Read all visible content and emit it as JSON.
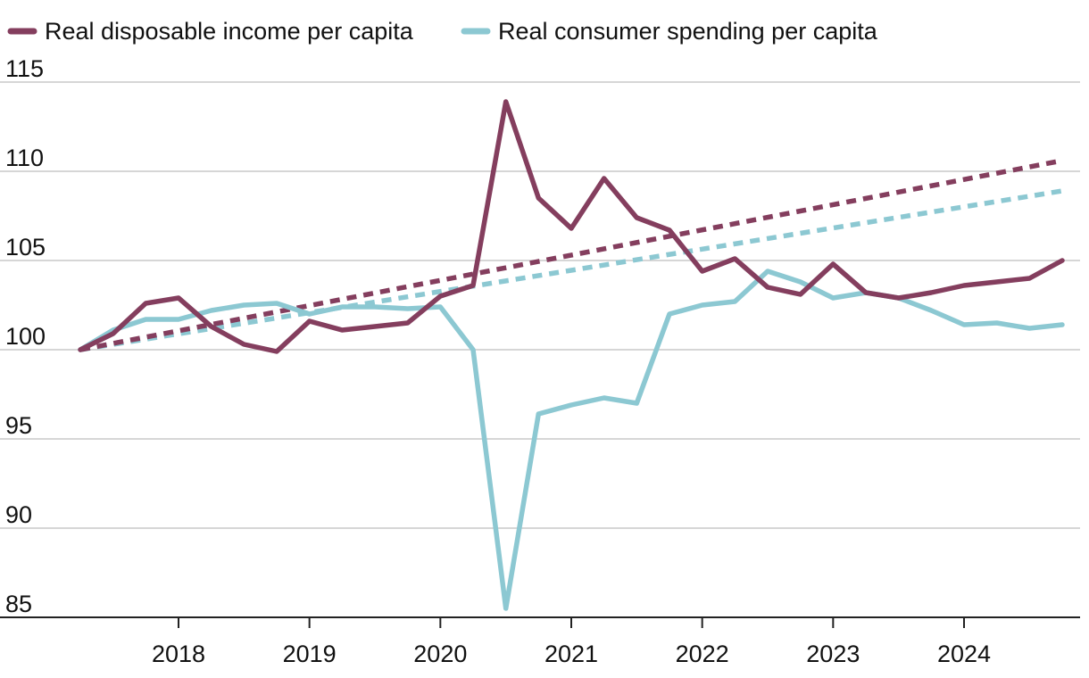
{
  "chart_data": {
    "type": "line",
    "title": "",
    "xlabel": "",
    "ylabel": "",
    "ylim": [
      85,
      115
    ],
    "y_ticks": [
      85,
      90,
      95,
      100,
      105,
      110,
      115
    ],
    "x_tick_labels": [
      "2018",
      "2019",
      "2020",
      "2021",
      "2022",
      "2023",
      "2024"
    ],
    "x_tick_positions": [
      2018.0,
      2019.0,
      2020.0,
      2021.0,
      2022.0,
      2023.0,
      2024.0
    ],
    "xlim": [
      2017.25,
      2024.75
    ],
    "grid": true,
    "legend_position": "top-left",
    "x": [
      2017.25,
      2017.5,
      2017.75,
      2018.0,
      2018.25,
      2018.5,
      2018.75,
      2019.0,
      2019.25,
      2019.5,
      2019.75,
      2020.0,
      2020.25,
      2020.5,
      2020.75,
      2021.0,
      2021.25,
      2021.5,
      2021.75,
      2022.0,
      2022.25,
      2022.5,
      2022.75,
      2023.0,
      2023.25,
      2023.5,
      2023.75,
      2024.0,
      2024.25,
      2024.5,
      2024.75
    ],
    "series": [
      {
        "name": "Real disposable income per capita",
        "color": "#843e5e",
        "style": "solid",
        "values": [
          100.0,
          100.9,
          102.6,
          102.9,
          101.3,
          100.3,
          99.9,
          101.6,
          101.1,
          101.3,
          101.5,
          103.0,
          103.6,
          113.9,
          108.5,
          106.8,
          109.6,
          107.4,
          106.7,
          104.4,
          105.1,
          103.5,
          103.1,
          104.8,
          103.2,
          102.9,
          103.2,
          103.6,
          103.8,
          104.0,
          105.0
        ]
      },
      {
        "name": "Real consumer spending per capita",
        "color": "#8cc8d2",
        "style": "solid",
        "values": [
          100.0,
          101.1,
          101.7,
          101.7,
          102.2,
          102.5,
          102.6,
          102.0,
          102.4,
          102.4,
          102.3,
          102.4,
          100.0,
          85.5,
          96.4,
          96.9,
          97.3,
          97.0,
          102.0,
          102.5,
          102.7,
          104.4,
          103.8,
          102.9,
          103.2,
          102.9,
          102.2,
          101.4,
          101.5,
          101.2,
          101.4
        ]
      },
      {
        "name": "Real disposable income per capita (trend)",
        "color": "#843e5e",
        "style": "dashed",
        "x": [
          2017.25,
          2024.75
        ],
        "values": [
          100.0,
          110.6
        ]
      },
      {
        "name": "Real consumer spending per capita (trend)",
        "color": "#8cc8d2",
        "style": "dashed",
        "x": [
          2017.25,
          2024.75
        ],
        "values": [
          100.0,
          108.9
        ]
      }
    ]
  },
  "legend": {
    "items": [
      {
        "label": "Real disposable income per capita",
        "color": "#843e5e"
      },
      {
        "label": "Real consumer spending per capita",
        "color": "#8cc8d2"
      }
    ]
  }
}
